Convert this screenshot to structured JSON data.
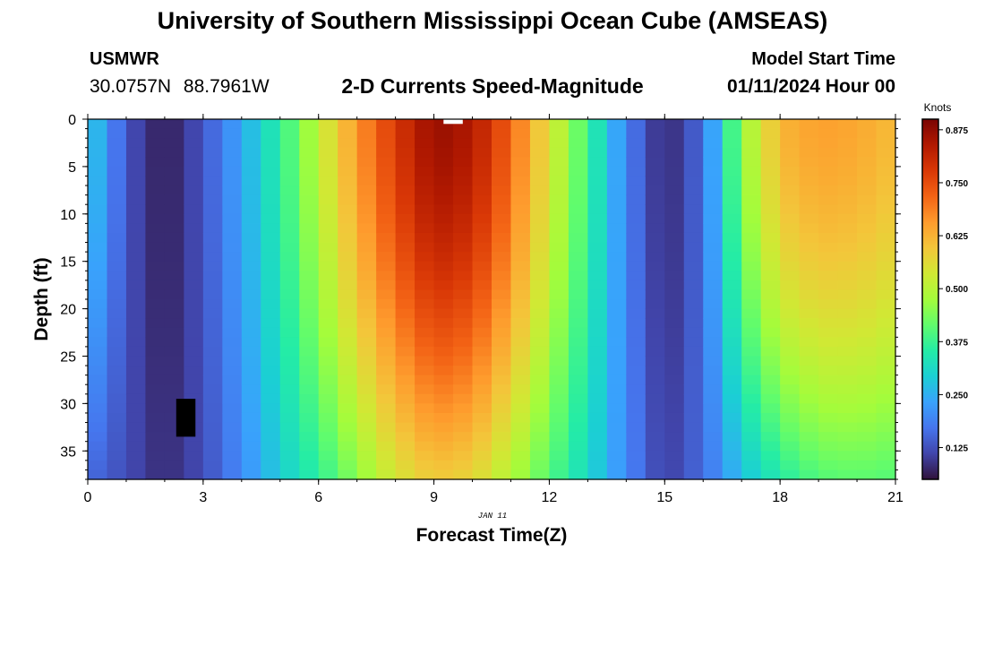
{
  "header": {
    "title": "University of Southern Mississippi Ocean Cube (AMSEAS)",
    "station": "USMWR",
    "coordinates": "30.0757N  88.7961W",
    "subtitle": "2-D Currents Speed-Magnitude",
    "model_start_label": "Model Start Time",
    "model_start_value": "01/11/2024 Hour 00"
  },
  "footer": {
    "title": "University of Southern Mississippi Ocean Cube (AMSEAS)"
  },
  "chart_data": {
    "type": "heatmap",
    "title": "2-D Currents Speed-Magnitude",
    "xlabel": "Forecast Time(Z)",
    "ylabel": "Depth (ft)",
    "date_annotation": "JAN 11",
    "xlim": [
      0,
      21
    ],
    "ylim": [
      38,
      0
    ],
    "xticks": [
      0,
      3,
      6,
      9,
      12,
      15,
      18,
      21
    ],
    "xtick_labels": [
      "0",
      "3",
      "6",
      "9",
      "12",
      "15",
      "18",
      "21"
    ],
    "yticks": [
      0,
      5,
      10,
      15,
      20,
      25,
      30,
      35
    ],
    "ytick_labels": [
      "0",
      "5",
      "10",
      "15",
      "20",
      "25",
      "30",
      "35"
    ],
    "colorbar": {
      "label": "Knots",
      "range": [
        0.05,
        0.9
      ],
      "ticks": [
        0.125,
        0.25,
        0.375,
        0.5,
        0.625,
        0.75,
        0.875
      ],
      "tick_labels": [
        "0.125",
        "0.250",
        "0.375",
        "0.500",
        "0.625",
        "0.750",
        "0.875"
      ],
      "colors": [
        "#30123b",
        "#4145ab",
        "#4675ed",
        "#39a2fc",
        "#1bcfd4",
        "#24eca6",
        "#61fc6c",
        "#a4fc3b",
        "#d1e834",
        "#f3c63a",
        "#fe9b2d",
        "#f36315",
        "#d93806",
        "#b11901",
        "#7a0402"
      ]
    },
    "time_hours": [
      0,
      1,
      2,
      3,
      4,
      5,
      6,
      7,
      8,
      9,
      10,
      11,
      12,
      13,
      14,
      15,
      16,
      17,
      18,
      19,
      20,
      21
    ],
    "surface_speed_knots": [
      0.3,
      0.13,
      0.06,
      0.13,
      0.24,
      0.36,
      0.51,
      0.66,
      0.78,
      0.87,
      0.84,
      0.72,
      0.55,
      0.38,
      0.19,
      0.07,
      0.16,
      0.46,
      0.62,
      0.65,
      0.64,
      0.61
    ],
    "bottom_speed_knots": [
      0.16,
      0.12,
      0.08,
      0.12,
      0.2,
      0.29,
      0.36,
      0.45,
      0.54,
      0.59,
      0.57,
      0.49,
      0.4,
      0.31,
      0.2,
      0.1,
      0.16,
      0.27,
      0.35,
      0.4,
      0.41,
      0.4
    ],
    "missing_cells": [
      {
        "time_range": [
          2.3,
          2.8
        ],
        "depth_range": [
          29.5,
          33.5
        ],
        "color": "#000000"
      },
      {
        "time_range": [
          9.25,
          9.75
        ],
        "depth_range": [
          0,
          0.5
        ],
        "color": "#ffffff"
      }
    ]
  }
}
